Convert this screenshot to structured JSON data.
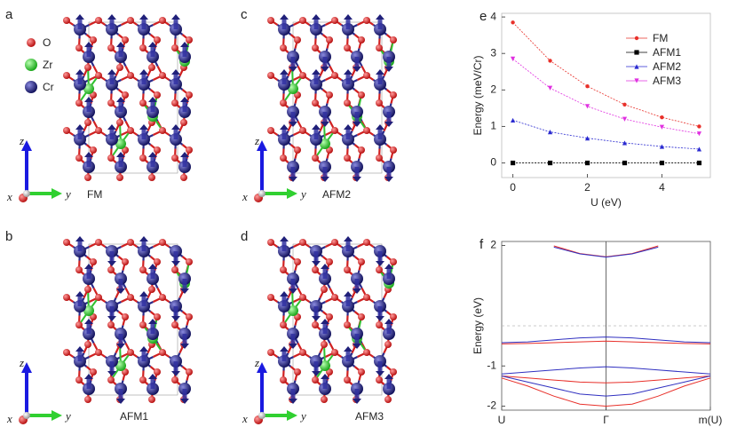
{
  "panels": [
    {
      "label": "a",
      "caption": "FM"
    },
    {
      "label": "b",
      "caption": "AFM1"
    },
    {
      "label": "c",
      "caption": "AFM2"
    },
    {
      "label": "d",
      "caption": "AFM3"
    }
  ],
  "atom_legend": [
    "O",
    "Zr",
    "Cr"
  ],
  "axis_triad": {
    "x": "x",
    "y": "y",
    "z": "z"
  },
  "chart_data": [
    {
      "type": "line",
      "panel_label": "e",
      "x_label": "U  (eV)",
      "y_label": "Energy (meV/Cr)",
      "x": [
        0,
        1,
        2,
        3,
        4,
        5
      ],
      "xlim": [
        -0.3,
        5.3
      ],
      "xticks": [
        0,
        2,
        4
      ],
      "ylim": [
        -0.4,
        4.1
      ],
      "yticks": [
        0,
        1,
        2,
        3,
        4
      ],
      "legend": "upper right",
      "series": [
        {
          "name": "FM",
          "color": "#e8302a",
          "marker": "circle",
          "values": [
            3.85,
            2.8,
            2.1,
            1.6,
            1.25,
            1.0
          ]
        },
        {
          "name": "AFM1",
          "color": "#000000",
          "marker": "square",
          "values": [
            0,
            0,
            0,
            0,
            0,
            0
          ]
        },
        {
          "name": "AFM2",
          "color": "#2a2ad0",
          "marker": "triangle-up",
          "values": [
            1.17,
            0.85,
            0.68,
            0.55,
            0.45,
            0.38
          ]
        },
        {
          "name": "AFM3",
          "color": "#e030e0",
          "marker": "triangle-down",
          "values": [
            2.85,
            2.05,
            1.55,
            1.2,
            0.98,
            0.8
          ]
        }
      ]
    },
    {
      "type": "bands",
      "panel_label": "f",
      "y_label": "Energy  (eV)",
      "x": [
        0,
        0.25,
        0.5,
        0.75,
        1,
        1.25,
        1.5,
        1.75,
        2
      ],
      "xlim": [
        0,
        2
      ],
      "xticks": [
        {
          "value": 0,
          "label": "U"
        },
        {
          "value": 1,
          "label": "Γ"
        },
        {
          "value": 2,
          "label": "m(U)"
        }
      ],
      "ylim": [
        -2.1,
        2.1
      ],
      "yticks": [
        -2,
        -1,
        2
      ],
      "series": [
        {
          "color": "#e8302a",
          "values": [
            null,
            null,
            1.99,
            1.8,
            1.72,
            1.8,
            1.99,
            null,
            null
          ]
        },
        {
          "color": "#3030c0",
          "values": [
            null,
            null,
            1.96,
            1.79,
            1.71,
            1.79,
            1.96,
            null,
            null
          ]
        },
        {
          "color": "#3030c0",
          "values": [
            -0.42,
            -0.4,
            -0.35,
            -0.3,
            -0.28,
            -0.3,
            -0.35,
            -0.4,
            -0.42
          ]
        },
        {
          "color": "#e8302a",
          "values": [
            -0.45,
            -0.44,
            -0.42,
            -0.4,
            -0.38,
            -0.4,
            -0.42,
            -0.44,
            -0.45
          ]
        },
        {
          "color": "#3030c0",
          "values": [
            -1.2,
            -1.15,
            -1.1,
            -1.05,
            -1.02,
            -1.05,
            -1.1,
            -1.15,
            -1.2
          ]
        },
        {
          "color": "#e8302a",
          "values": [
            -1.25,
            -1.3,
            -1.35,
            -1.4,
            -1.42,
            -1.4,
            -1.35,
            -1.3,
            -1.25
          ]
        },
        {
          "color": "#3030c0",
          "values": [
            -1.25,
            -1.4,
            -1.55,
            -1.7,
            -1.75,
            -1.7,
            -1.55,
            -1.4,
            -1.25
          ]
        },
        {
          "color": "#e8302a",
          "values": [
            -1.3,
            -1.5,
            -1.75,
            -1.95,
            -2.0,
            -1.95,
            -1.75,
            -1.5,
            -1.3
          ]
        }
      ]
    }
  ]
}
